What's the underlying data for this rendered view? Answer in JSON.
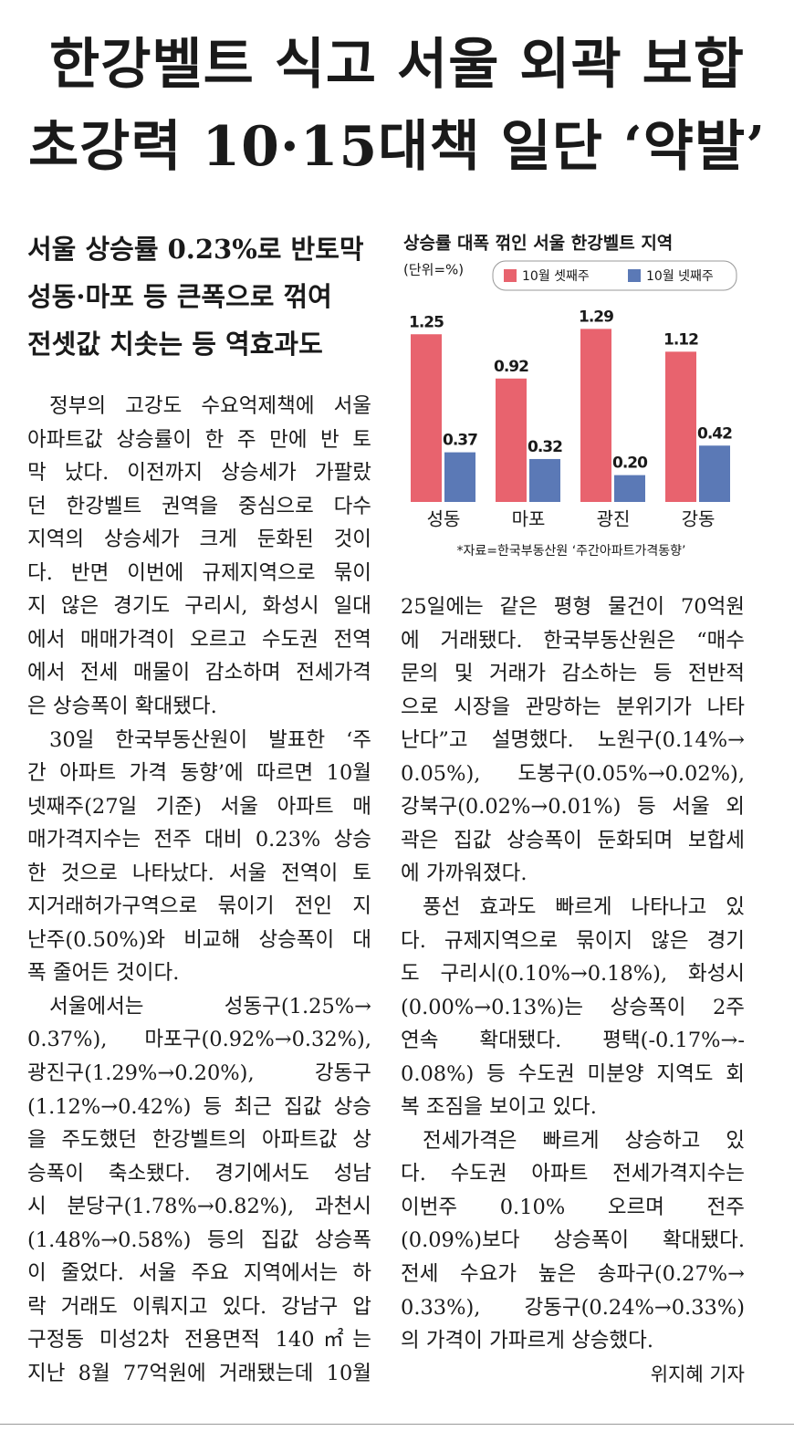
{
  "header": {
    "title_lines": [
      "한강벨트 식고 서울 외곽 보합",
      "초강력 10·15대책 일단 ‘약발’"
    ]
  },
  "subheadline": [
    "서울 상승률 0.23%로 반토막",
    "성동·마포 등 큰폭으로 꺾여",
    "전셋값 치솟는 등 역효과도"
  ],
  "body": {
    "left": {
      "paragraphs": [
        [
          "정부의 고강도 수요억제책에 서울",
          "아파트값 상승률이 한 주 만에 반 토",
          "막 났다. 이전까지 상승세가 가팔랐",
          "던 한강벨트 권역을 중심으로 다수",
          "지역의 상승세가 크게 둔화된 것이",
          "다. 반면 이번에 규제지역으로 묶이",
          "지 않은 경기도 구리시, 화성시 일대",
          "에서 매매가격이 오르고 수도권 전역",
          "에서 전세 매물이 감소하며 전세가격",
          "은 상승폭이 확대됐다."
        ],
        [
          "30일 한국부동산원이 발표한 ‘주",
          "간 아파트 가격 동향’에 따르면 10월",
          "넷째주(27일 기준) 서울 아파트 매",
          "매가격지수는 전주 대비 0.23% 상승",
          "한 것으로 나타났다. 서울 전역이 토",
          "지거래허가구역으로 묶이기 전인 지",
          "난주(0.50%)와 비교해 상승폭이 대",
          "폭 줄어든 것이다."
        ],
        [
          "서울에서는 성동구(1.25%→",
          "0.37%), 마포구(0.92%→0.32%),",
          "광진구(1.29%→0.20%), 강동구",
          "(1.12%→0.42%) 등 최근 집값 상승",
          "을 주도했던 한강벨트의 아파트값 상",
          "승폭이 축소됐다. 경기에서도 성남",
          "시 분당구(1.78%→0.82%), 과천시",
          "(1.48%→0.58%) 등의 집값 상승폭",
          "이 줄었다. 서울 주요 지역에서는 하",
          "락 거래도 이뤄지고 있다. 강남구 압",
          "구정동 미성2차 전용면적 140㎡는",
          "지난 8월 77억원에 거래됐는데 10월"
        ]
      ]
    },
    "right": {
      "paragraphs": [
        [
          "25일에는 같은 평형 물건이 70억원",
          "에 거래됐다. 한국부동산원은 “매수",
          "문의 및 거래가 감소하는 등 전반적",
          "으로 시장을 관망하는 분위기가 나타",
          "난다”고 설명했다. 노원구(0.14%→",
          "0.05%), 도봉구(0.05%→0.02%),",
          "강북구(0.02%→0.01%) 등 서울 외",
          "곽은 집값 상승폭이 둔화되며 보합세",
          "에 가까워졌다."
        ],
        [
          "풍선 효과도 빠르게 나타나고 있",
          "다. 규제지역으로 묶이지 않은 경기",
          "도 구리시(0.10%→0.18%), 화성시",
          "(0.00%→0.13%)는 상승폭이 2주",
          "연속 확대됐다. 평택(-0.17%→-",
          "0.08%) 등 수도권 미분양 지역도 회",
          "복 조짐을 보이고 있다."
        ],
        [
          "전세가격은 빠르게 상승하고 있",
          "다. 수도권 아파트 전세가격지수는",
          "이번주 0.10% 오르며 전주",
          "(0.09%)보다 상승폭이 확대됐다.",
          "전세 수요가 높은 송파구(0.27%→",
          "0.33%), 강동구(0.24%→0.33%)",
          "의 가격이 가파르게 상승했다."
        ]
      ]
    },
    "byline": "위지혜 기자"
  },
  "chart_data": {
    "type": "bar",
    "title": "상승률 대폭 꺾인 서울 한강벨트 지역",
    "unit": "(단위=%)",
    "categories": [
      "성동",
      "마포",
      "광진",
      "강동"
    ],
    "series": [
      {
        "name": "10월 셋째주",
        "color": "#e8636e",
        "values": [
          1.25,
          0.92,
          1.29,
          1.12
        ],
        "value_labels": [
          "1.25",
          "0.92",
          "1.29",
          "1.12"
        ]
      },
      {
        "name": "10월 넷째주",
        "color": "#5b79b6",
        "values": [
          0.37,
          0.32,
          0.2,
          0.42
        ],
        "value_labels": [
          "0.37",
          "0.32",
          "0.20",
          "0.42"
        ]
      }
    ],
    "source": "*자료=한국부동산원 ‘주간아파트가격동향’"
  }
}
